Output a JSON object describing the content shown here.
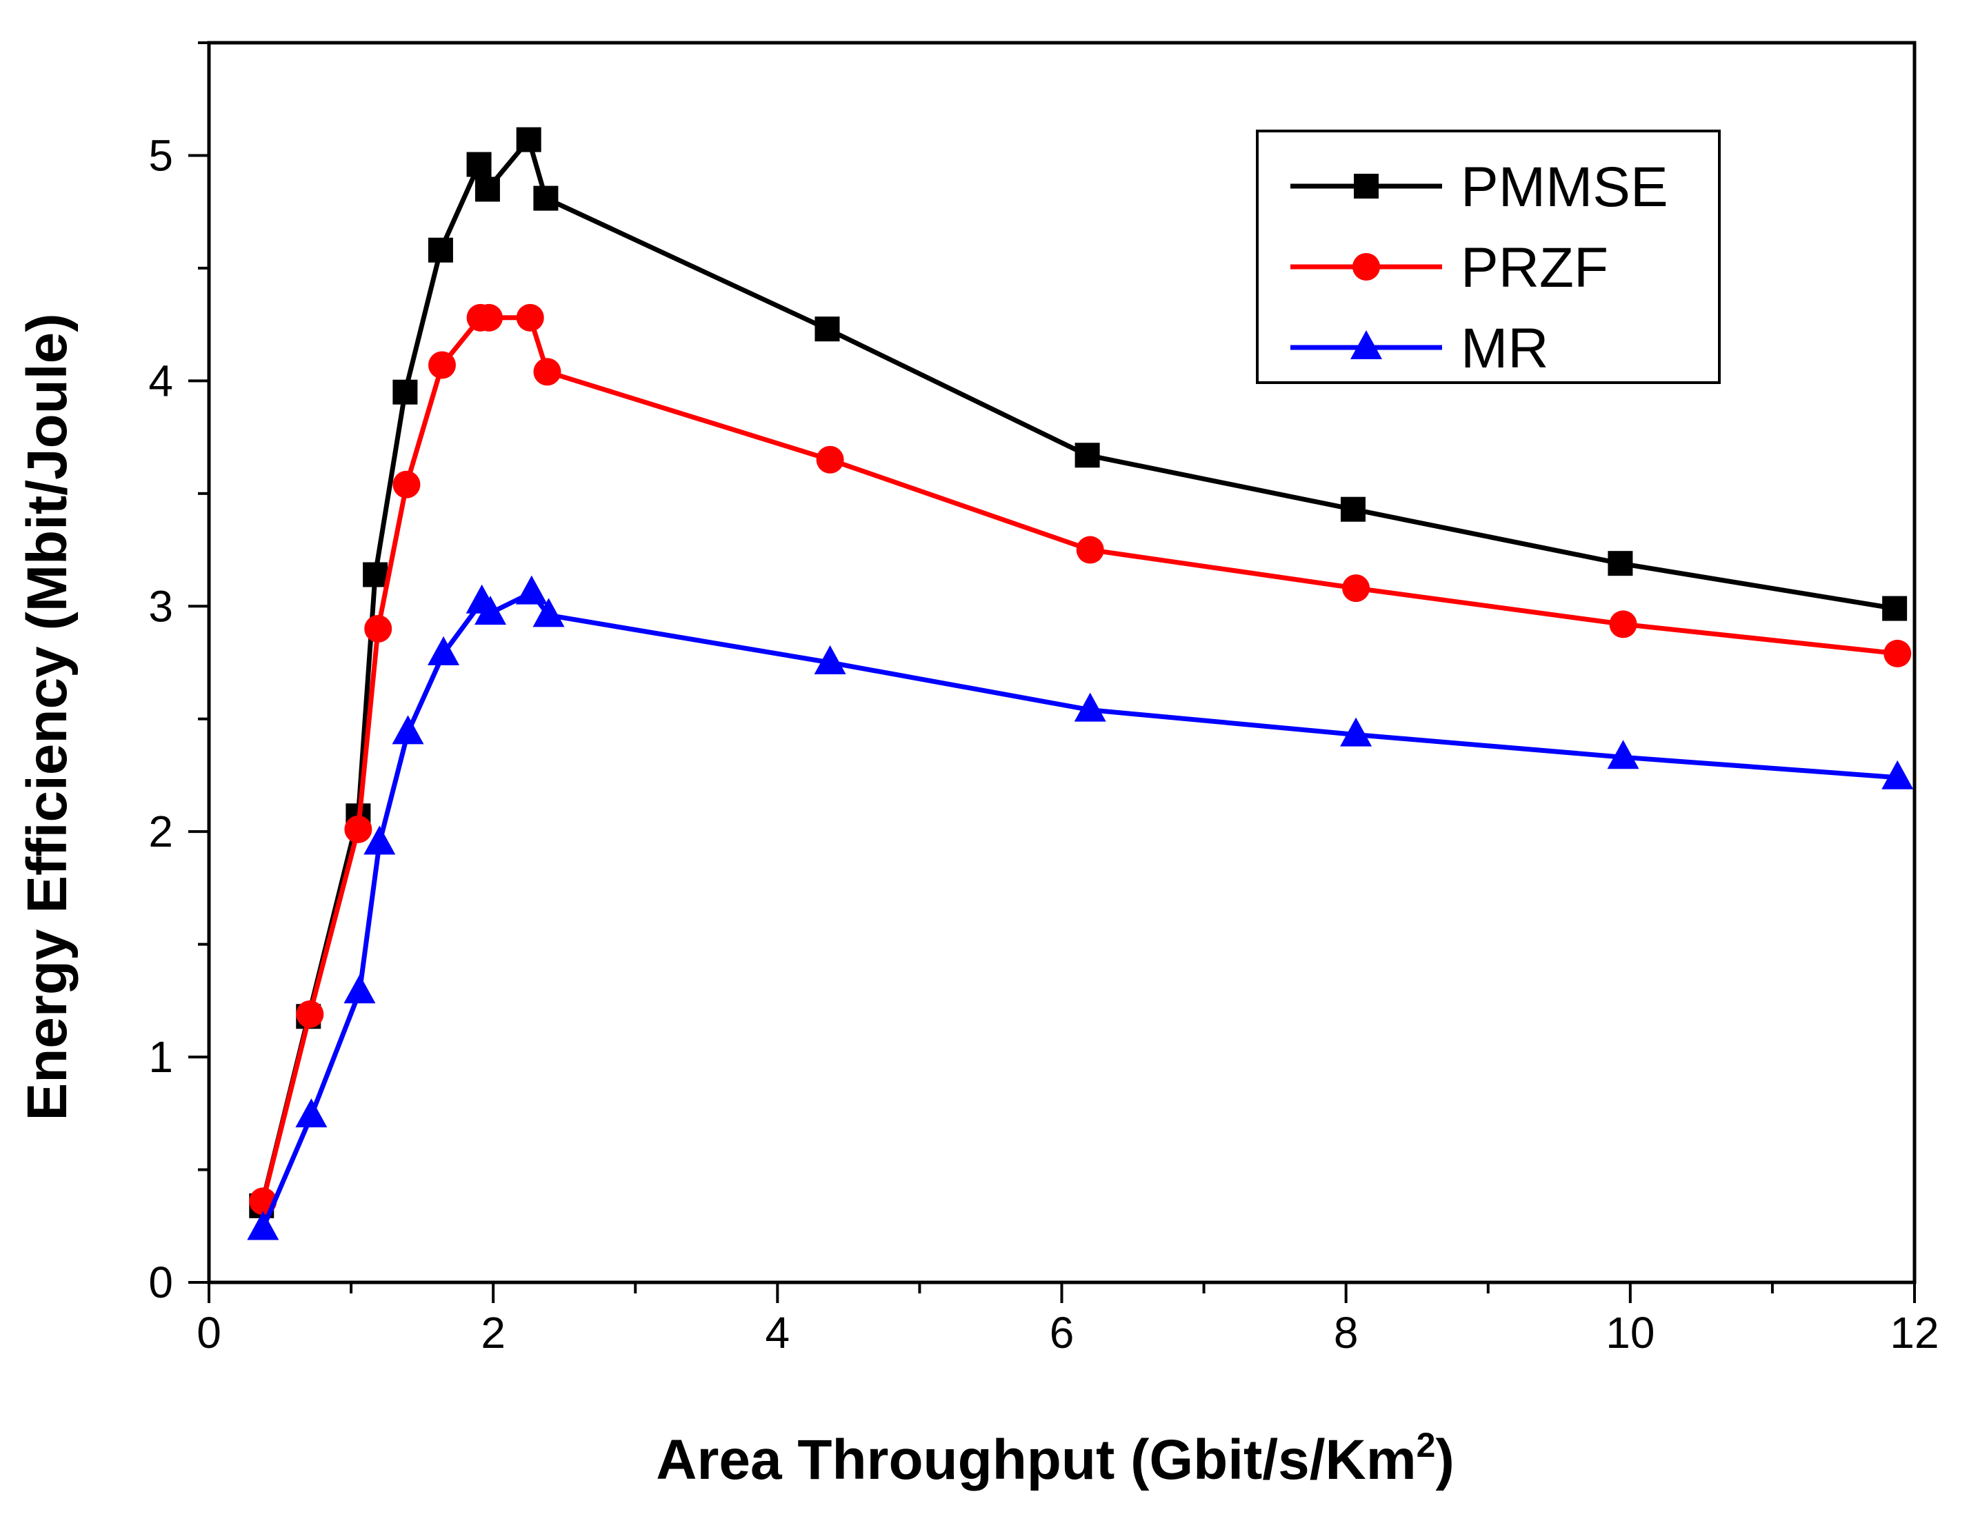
{
  "chart_data": {
    "type": "line",
    "title": "",
    "xlabel": "Area Throughput  (Gbit/s/Km",
    "xlabel_sup": "2",
    "xlabel_close": ")",
    "ylabel": "Energy Efficiency (Mbit/Joule)",
    "xlim": [
      0,
      12
    ],
    "ylim": [
      0,
      5.5
    ],
    "xticks": [
      0,
      2,
      4,
      6,
      8,
      10,
      12
    ],
    "yticks": [
      0,
      1,
      2,
      3,
      4,
      5
    ],
    "xtick_labels": [
      "0",
      "2",
      "4",
      "6",
      "8",
      "10",
      "12"
    ],
    "ytick_labels": [
      "0",
      "1",
      "2",
      "3",
      "4",
      "5"
    ],
    "x_minor_step": 1,
    "y_minor_step": 0.5,
    "grid": false,
    "legend_position": "top-right",
    "series": [
      {
        "name": "PMMSE",
        "color": "#000000",
        "marker": "square",
        "x": [
          0.37,
          0.7,
          1.05,
          1.17,
          1.38,
          1.63,
          1.9,
          1.96,
          2.25,
          2.37,
          4.35,
          6.18,
          8.05,
          9.93,
          11.86
        ],
        "y": [
          0.34,
          1.18,
          2.07,
          3.14,
          3.95,
          4.58,
          4.96,
          4.85,
          5.07,
          4.81,
          4.23,
          3.67,
          3.43,
          3.19,
          2.99
        ]
      },
      {
        "name": "PRZF",
        "color": "#ff0000",
        "marker": "circle",
        "x": [
          0.38,
          0.71,
          1.05,
          1.19,
          1.39,
          1.64,
          1.91,
          1.97,
          2.26,
          2.38,
          4.37,
          6.2,
          8.07,
          9.95,
          11.88
        ],
        "y": [
          0.36,
          1.19,
          2.01,
          2.9,
          3.54,
          4.07,
          4.28,
          4.28,
          4.28,
          4.04,
          3.65,
          3.25,
          3.08,
          2.92,
          2.79
        ]
      },
      {
        "name": "MR",
        "color": "#0000ff",
        "marker": "triangle",
        "x": [
          0.38,
          0.72,
          1.06,
          1.2,
          1.4,
          1.65,
          1.92,
          1.98,
          2.27,
          2.39,
          4.37,
          6.2,
          8.07,
          9.95,
          11.88
        ],
        "y": [
          0.24,
          0.74,
          1.29,
          1.95,
          2.44,
          2.79,
          3.02,
          2.97,
          3.06,
          2.96,
          2.75,
          2.54,
          2.43,
          2.33,
          2.24
        ]
      }
    ]
  }
}
